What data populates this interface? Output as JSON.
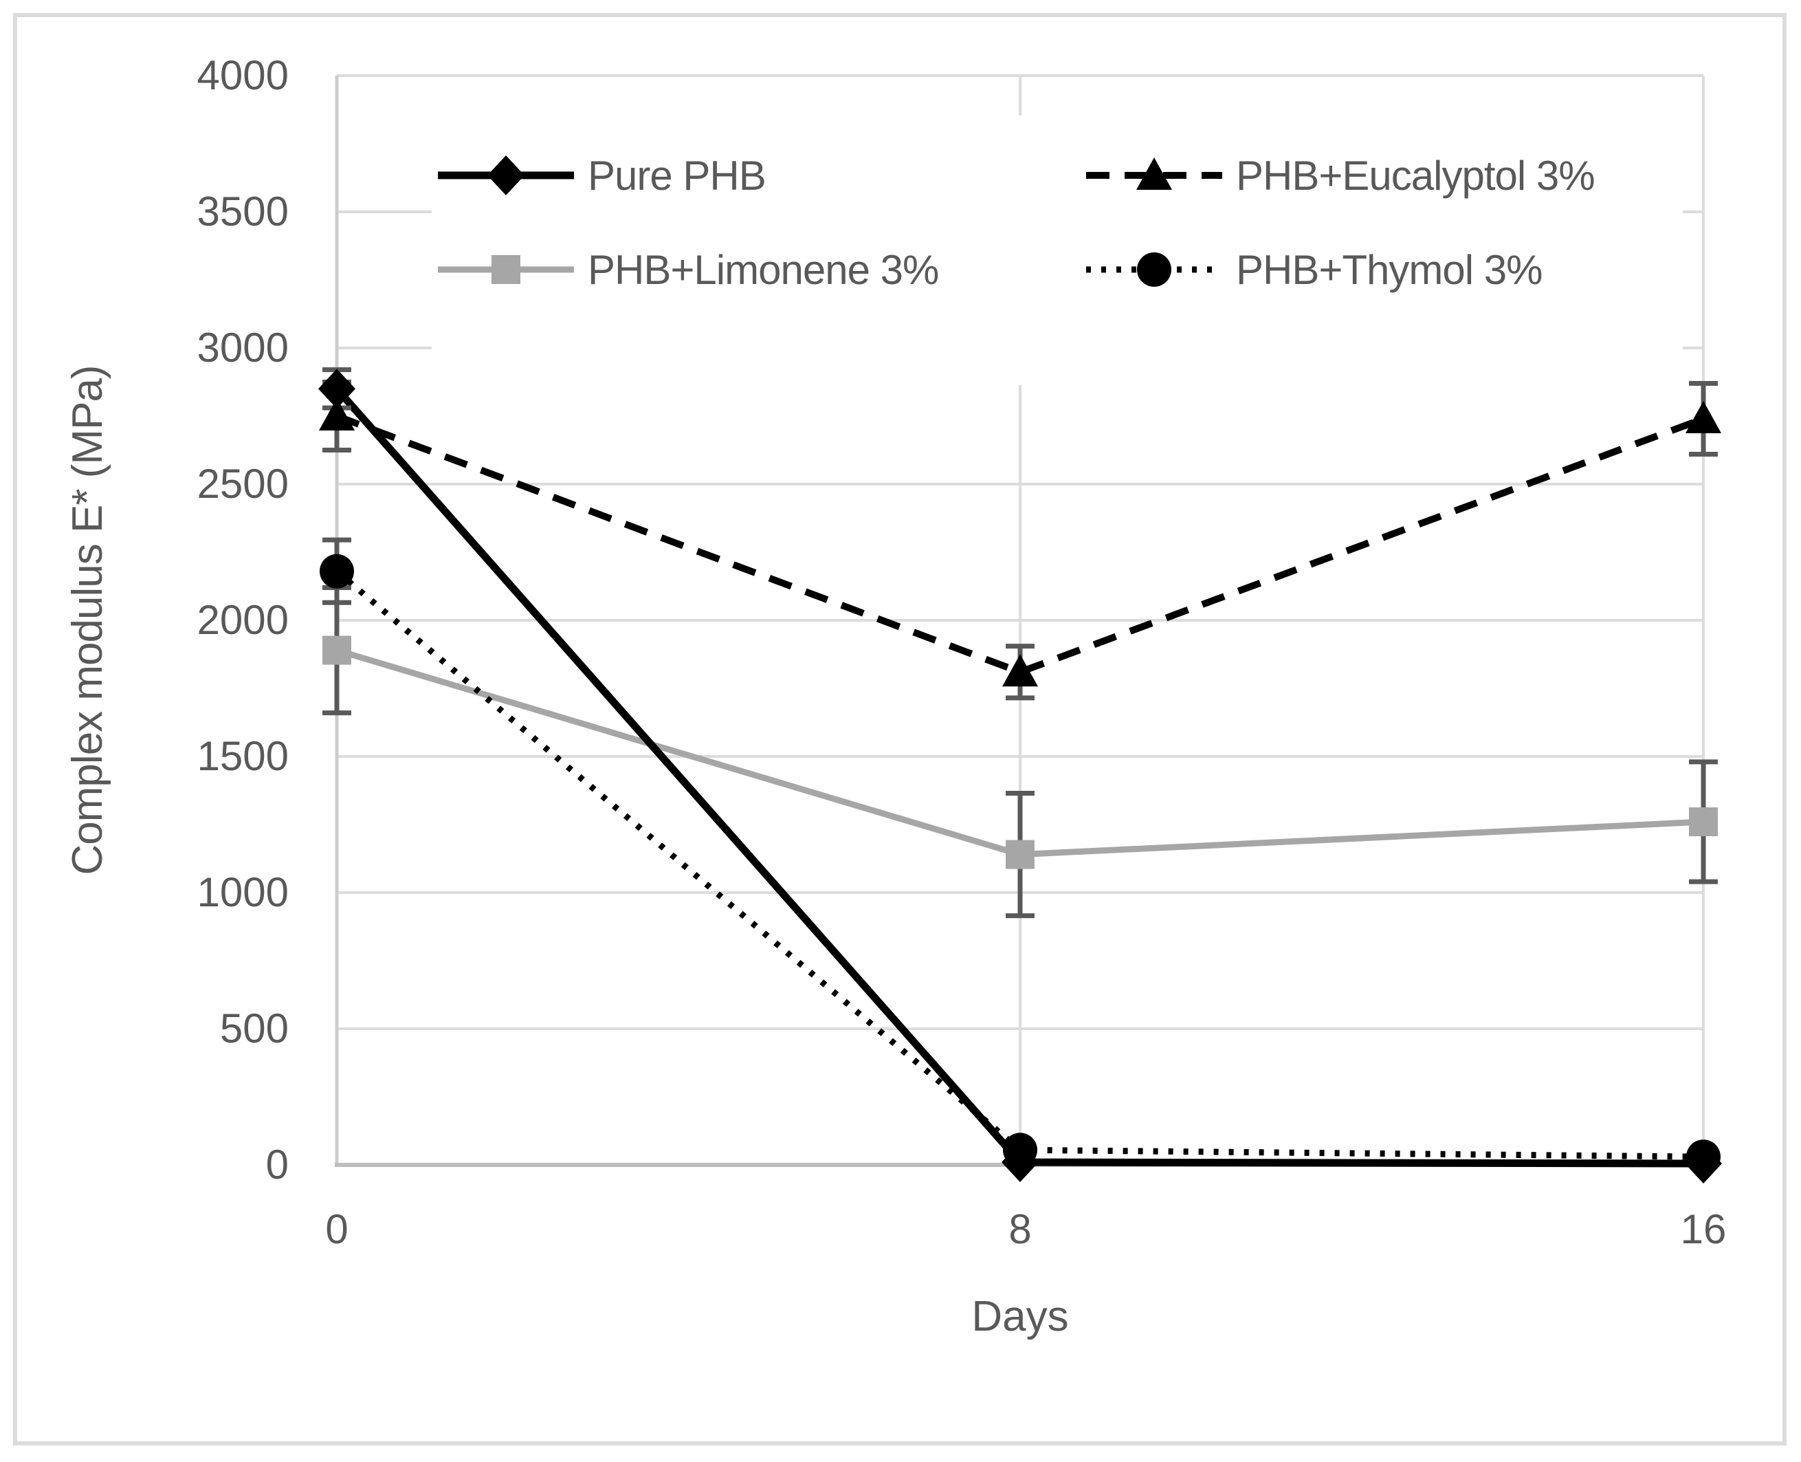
{
  "figure": {
    "description": "Line chart of complex modulus versus ageing days for PHB films",
    "background": "#ffffff",
    "frame_color": "#dcdcdc"
  },
  "chart_data": {
    "type": "line",
    "title": "",
    "xlabel": "Days",
    "ylabel": "Complex modulus E* (MPa)",
    "x": [
      0,
      8,
      16
    ],
    "x_tick_labels": [
      "0",
      "8",
      "16"
    ],
    "y_ticks": [
      0,
      500,
      1000,
      1500,
      2000,
      2500,
      3000,
      3500,
      4000
    ],
    "ylim": [
      0,
      4000
    ],
    "xlim": [
      0,
      16
    ],
    "grid": true,
    "legend_position": "top-center",
    "legend_columns": 2,
    "series": [
      {
        "name": "Pure PHB",
        "slug": "pure-phb",
        "values": [
          2850,
          10,
          5
        ],
        "errors": [
          70,
          0,
          0
        ],
        "color": "#000000",
        "line_style": "solid",
        "line_width": 11,
        "marker": "diamond"
      },
      {
        "name": "PHB+Eucalyptol 3%",
        "slug": "phb-eucalyptol",
        "values": [
          2750,
          1810,
          2740
        ],
        "errors": [
          125,
          95,
          130
        ],
        "color": "#000000",
        "line_style": "dashed",
        "line_width": 10,
        "marker": "triangle"
      },
      {
        "name": "PHB+Limonene 3%",
        "slug": "phb-limonene",
        "values": [
          1890,
          1140,
          1260
        ],
        "errors": [
          230,
          225,
          220
        ],
        "color": "#a6a6a6",
        "line_style": "solid",
        "line_width": 9,
        "marker": "square"
      },
      {
        "name": "PHB+Thymol 3%",
        "slug": "phb-thymol",
        "values": [
          2180,
          55,
          30
        ],
        "errors": [
          115,
          0,
          0
        ],
        "color": "#000000",
        "line_style": "dotted",
        "line_width": 9,
        "marker": "circle"
      }
    ],
    "colors": {
      "grid": "#dcdcdc",
      "x_axis": "#bdbdbd",
      "y_axis": "#cccccc",
      "text": "#595959",
      "error_bar": "#595959"
    }
  }
}
